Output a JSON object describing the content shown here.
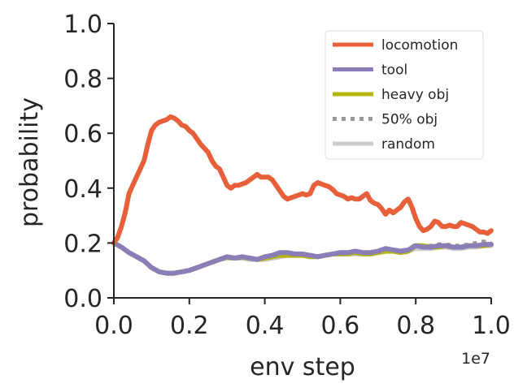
{
  "chart_data": {
    "type": "line",
    "xlabel": "env step",
    "ylabel": "probability",
    "x_offset_label": "1e7",
    "xlim": [
      0.0,
      1.0
    ],
    "ylim": [
      0.0,
      1.0
    ],
    "xticks": [
      "0.0",
      "0.2",
      "0.4",
      "0.6",
      "0.8",
      "1.0"
    ],
    "yticks": [
      "0.0",
      "0.2",
      "0.4",
      "0.6",
      "0.8",
      "1.0"
    ],
    "grid": false,
    "legend_position": "top-right",
    "series": [
      {
        "name": "locomotion",
        "color": "#E8603A",
        "dash": "solid",
        "x": [
          0.0,
          0.01,
          0.02,
          0.03,
          0.04,
          0.05,
          0.06,
          0.08,
          0.09,
          0.1,
          0.11,
          0.12,
          0.13,
          0.14,
          0.15,
          0.16,
          0.17,
          0.18,
          0.19,
          0.2,
          0.21,
          0.22,
          0.23,
          0.24,
          0.25,
          0.26,
          0.27,
          0.28,
          0.29,
          0.3,
          0.31,
          0.32,
          0.33,
          0.34,
          0.35,
          0.36,
          0.37,
          0.38,
          0.39,
          0.4,
          0.41,
          0.42,
          0.43,
          0.44,
          0.45,
          0.46,
          0.47,
          0.48,
          0.49,
          0.5,
          0.51,
          0.52,
          0.53,
          0.54,
          0.55,
          0.56,
          0.57,
          0.58,
          0.59,
          0.6,
          0.61,
          0.62,
          0.63,
          0.64,
          0.65,
          0.66,
          0.67,
          0.68,
          0.69,
          0.7,
          0.71,
          0.72,
          0.73,
          0.74,
          0.75,
          0.76,
          0.77,
          0.78,
          0.79,
          0.8,
          0.81,
          0.82,
          0.83,
          0.84,
          0.85,
          0.86,
          0.87,
          0.88,
          0.89,
          0.9,
          0.91,
          0.92,
          0.93,
          0.94,
          0.95,
          0.96,
          0.97,
          0.98,
          0.99,
          1.0
        ],
        "y": [
          0.2,
          0.22,
          0.26,
          0.31,
          0.38,
          0.41,
          0.44,
          0.5,
          0.56,
          0.61,
          0.63,
          0.64,
          0.645,
          0.65,
          0.66,
          0.655,
          0.645,
          0.63,
          0.625,
          0.61,
          0.6,
          0.58,
          0.56,
          0.545,
          0.53,
          0.5,
          0.48,
          0.47,
          0.44,
          0.41,
          0.4,
          0.41,
          0.41,
          0.415,
          0.42,
          0.43,
          0.44,
          0.45,
          0.44,
          0.44,
          0.44,
          0.43,
          0.41,
          0.39,
          0.37,
          0.36,
          0.365,
          0.37,
          0.375,
          0.38,
          0.375,
          0.38,
          0.41,
          0.42,
          0.415,
          0.41,
          0.405,
          0.395,
          0.38,
          0.375,
          0.37,
          0.36,
          0.365,
          0.36,
          0.36,
          0.37,
          0.38,
          0.355,
          0.345,
          0.34,
          0.325,
          0.305,
          0.32,
          0.31,
          0.32,
          0.33,
          0.35,
          0.36,
          0.33,
          0.29,
          0.26,
          0.245,
          0.25,
          0.26,
          0.28,
          0.275,
          0.26,
          0.26,
          0.265,
          0.26,
          0.26,
          0.275,
          0.27,
          0.265,
          0.26,
          0.25,
          0.24,
          0.24,
          0.235,
          0.245
        ]
      },
      {
        "name": "tool",
        "color": "#8B7DB8",
        "dash": "solid",
        "x": [
          0.0,
          0.02,
          0.04,
          0.06,
          0.08,
          0.1,
          0.12,
          0.14,
          0.16,
          0.18,
          0.2,
          0.22,
          0.24,
          0.26,
          0.28,
          0.3,
          0.32,
          0.34,
          0.36,
          0.38,
          0.4,
          0.42,
          0.44,
          0.46,
          0.48,
          0.5,
          0.52,
          0.54,
          0.56,
          0.58,
          0.6,
          0.62,
          0.64,
          0.66,
          0.68,
          0.7,
          0.72,
          0.74,
          0.76,
          0.78,
          0.8,
          0.82,
          0.84,
          0.86,
          0.88,
          0.9,
          0.92,
          0.94,
          0.96,
          0.98,
          1.0
        ],
        "y": [
          0.2,
          0.185,
          0.165,
          0.15,
          0.135,
          0.11,
          0.095,
          0.09,
          0.09,
          0.095,
          0.1,
          0.11,
          0.12,
          0.13,
          0.14,
          0.15,
          0.145,
          0.15,
          0.145,
          0.14,
          0.15,
          0.155,
          0.165,
          0.165,
          0.16,
          0.16,
          0.155,
          0.15,
          0.155,
          0.16,
          0.165,
          0.165,
          0.17,
          0.165,
          0.165,
          0.17,
          0.18,
          0.175,
          0.17,
          0.175,
          0.19,
          0.185,
          0.185,
          0.19,
          0.19,
          0.185,
          0.185,
          0.19,
          0.19,
          0.195,
          0.195
        ]
      },
      {
        "name": "heavy obj",
        "color": "#B5B512",
        "dash": "solid",
        "x": [
          0.0,
          0.02,
          0.04,
          0.06,
          0.08,
          0.1,
          0.12,
          0.14,
          0.16,
          0.18,
          0.2,
          0.22,
          0.24,
          0.26,
          0.28,
          0.3,
          0.32,
          0.34,
          0.36,
          0.38,
          0.4,
          0.42,
          0.44,
          0.46,
          0.48,
          0.5,
          0.52,
          0.54,
          0.56,
          0.58,
          0.6,
          0.62,
          0.64,
          0.66,
          0.68,
          0.7,
          0.72,
          0.74,
          0.76,
          0.78,
          0.8,
          0.82,
          0.84,
          0.86,
          0.88,
          0.9,
          0.92,
          0.94,
          0.96,
          0.98,
          1.0
        ],
        "y": [
          0.2,
          0.185,
          0.165,
          0.15,
          0.135,
          0.11,
          0.095,
          0.09,
          0.09,
          0.095,
          0.1,
          0.11,
          0.12,
          0.13,
          0.14,
          0.148,
          0.145,
          0.148,
          0.145,
          0.14,
          0.145,
          0.15,
          0.155,
          0.155,
          0.155,
          0.155,
          0.15,
          0.15,
          0.155,
          0.16,
          0.16,
          0.16,
          0.165,
          0.16,
          0.16,
          0.165,
          0.17,
          0.17,
          0.165,
          0.17,
          0.19,
          0.19,
          0.185,
          0.185,
          0.19,
          0.185,
          0.185,
          0.19,
          0.19,
          0.19,
          0.195
        ]
      },
      {
        "name": "50% obj",
        "color": "#999999",
        "dash": "dotted",
        "x": [
          0.0,
          0.02,
          0.04,
          0.06,
          0.08,
          0.1,
          0.12,
          0.14,
          0.16,
          0.18,
          0.2,
          0.22,
          0.24,
          0.26,
          0.28,
          0.3,
          0.32,
          0.34,
          0.36,
          0.38,
          0.4,
          0.42,
          0.44,
          0.46,
          0.48,
          0.5,
          0.52,
          0.54,
          0.56,
          0.58,
          0.6,
          0.62,
          0.64,
          0.66,
          0.68,
          0.7,
          0.72,
          0.74,
          0.76,
          0.78,
          0.8,
          0.82,
          0.84,
          0.86,
          0.88,
          0.9,
          0.92,
          0.94,
          0.96,
          0.98,
          1.0
        ],
        "y": [
          0.2,
          0.185,
          0.165,
          0.15,
          0.135,
          0.11,
          0.095,
          0.09,
          0.09,
          0.095,
          0.1,
          0.11,
          0.12,
          0.13,
          0.14,
          0.15,
          0.145,
          0.15,
          0.145,
          0.14,
          0.15,
          0.155,
          0.16,
          0.16,
          0.155,
          0.155,
          0.15,
          0.15,
          0.155,
          0.16,
          0.16,
          0.16,
          0.165,
          0.165,
          0.16,
          0.165,
          0.175,
          0.175,
          0.17,
          0.175,
          0.195,
          0.19,
          0.19,
          0.195,
          0.195,
          0.19,
          0.19,
          0.195,
          0.2,
          0.205,
          0.2
        ]
      },
      {
        "name": "random",
        "color": "#CCCCCC",
        "dash": "solid",
        "x": [
          0.0,
          0.02,
          0.04,
          0.06,
          0.08,
          0.1,
          0.12,
          0.14,
          0.16,
          0.18,
          0.2,
          0.22,
          0.24,
          0.26,
          0.28,
          0.3,
          0.32,
          0.34,
          0.36,
          0.38,
          0.4,
          0.42,
          0.44,
          0.46,
          0.48,
          0.5,
          0.52,
          0.54,
          0.56,
          0.58,
          0.6,
          0.62,
          0.64,
          0.66,
          0.68,
          0.7,
          0.72,
          0.74,
          0.76,
          0.78,
          0.8,
          0.82,
          0.84,
          0.86,
          0.88,
          0.9,
          0.92,
          0.94,
          0.96,
          0.98,
          1.0
        ],
        "y": [
          0.2,
          0.185,
          0.165,
          0.15,
          0.135,
          0.11,
          0.095,
          0.09,
          0.09,
          0.095,
          0.1,
          0.11,
          0.12,
          0.13,
          0.14,
          0.145,
          0.145,
          0.145,
          0.14,
          0.14,
          0.14,
          0.145,
          0.15,
          0.155,
          0.155,
          0.155,
          0.15,
          0.15,
          0.155,
          0.16,
          0.16,
          0.16,
          0.16,
          0.16,
          0.16,
          0.165,
          0.17,
          0.17,
          0.165,
          0.17,
          0.18,
          0.18,
          0.18,
          0.185,
          0.185,
          0.18,
          0.18,
          0.185,
          0.185,
          0.19,
          0.19
        ]
      }
    ]
  }
}
